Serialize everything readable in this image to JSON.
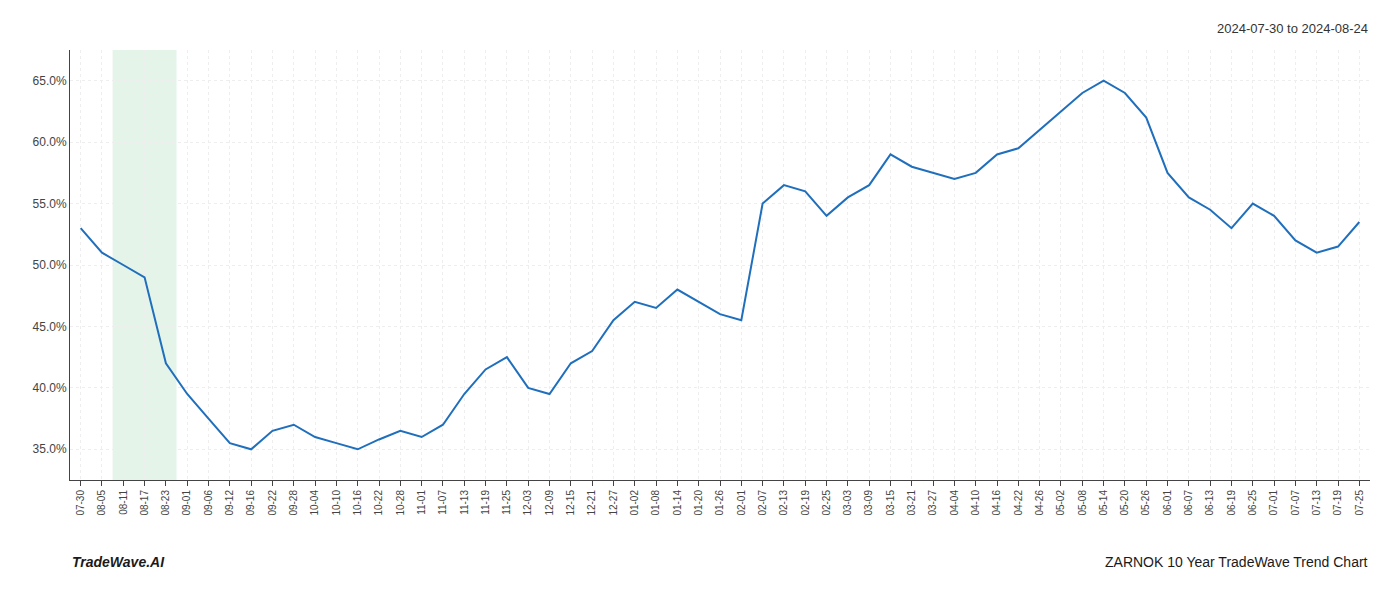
{
  "chart_data": {
    "type": "line",
    "title": "ZARNOK 10 Year TradeWave Trend Chart",
    "subtitle": "2024-07-30 to 2024-08-24",
    "annotations": [
      "TradeWave.AI"
    ],
    "categories": [
      "07-30",
      "08-05",
      "08-11",
      "08-17",
      "08-23",
      "09-01",
      "09-06",
      "09-12",
      "09-16",
      "09-22",
      "09-28",
      "10-04",
      "10-10",
      "10-16",
      "10-22",
      "10-28",
      "11-01",
      "11-07",
      "11-13",
      "11-19",
      "11-25",
      "12-03",
      "12-09",
      "12-15",
      "12-21",
      "12-27",
      "01-02",
      "01-08",
      "01-14",
      "01-20",
      "01-26",
      "02-01",
      "02-07",
      "02-13",
      "02-19",
      "02-25",
      "03-03",
      "03-09",
      "03-15",
      "03-21",
      "03-27",
      "04-04",
      "04-10",
      "04-16",
      "04-22",
      "04-26",
      "05-02",
      "05-08",
      "05-14",
      "05-20",
      "05-26",
      "06-01",
      "06-07",
      "06-13",
      "06-19",
      "06-25",
      "07-01",
      "07-07",
      "07-13",
      "07-19",
      "07-25"
    ],
    "values": [
      0.53,
      0.51,
      0.5,
      0.49,
      0.42,
      0.395,
      0.375,
      0.355,
      0.35,
      0.365,
      0.37,
      0.36,
      0.355,
      0.35,
      0.358,
      0.365,
      0.36,
      0.37,
      0.395,
      0.415,
      0.425,
      0.4,
      0.395,
      0.42,
      0.43,
      0.455,
      0.47,
      0.465,
      0.48,
      0.47,
      0.46,
      0.455,
      0.55,
      0.565,
      0.56,
      0.54,
      0.555,
      0.565,
      0.59,
      0.58,
      0.575,
      0.57,
      0.575,
      0.59,
      0.595,
      0.61,
      0.625,
      0.64,
      0.65,
      0.64,
      0.62,
      0.575,
      0.555,
      0.545,
      0.53,
      0.55,
      0.54,
      0.52,
      0.51,
      0.515,
      0.535
    ],
    "color": "#1f6fbd",
    "highlight": {
      "from": "08-11",
      "to": "08-23",
      "color": "#d4edda"
    },
    "ylim": [
      0.325,
      0.675
    ],
    "yticks": [
      {
        "value": 0.35,
        "label": "35.0%"
      },
      {
        "value": 0.4,
        "label": "40.0%"
      },
      {
        "value": 0.45,
        "label": "45.0%"
      },
      {
        "value": 0.5,
        "label": "50.0%"
      },
      {
        "value": 0.55,
        "label": "55.0%"
      },
      {
        "value": 0.6,
        "label": "60.0%"
      },
      {
        "value": 0.65,
        "label": "65.0%"
      }
    ],
    "grid": true
  }
}
